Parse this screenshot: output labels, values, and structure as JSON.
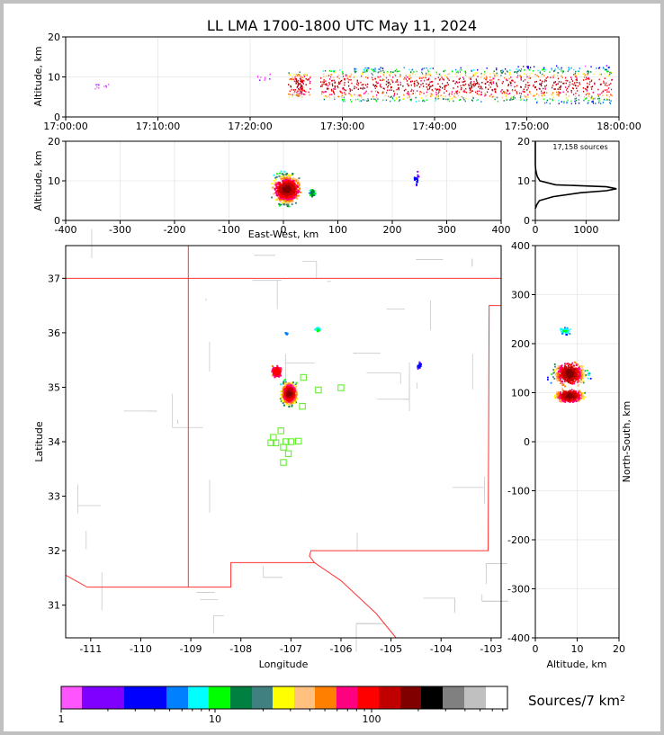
{
  "title": "LL LMA 1700-1800 UTC May 11, 2024",
  "chart_data": [
    {
      "id": "time-height",
      "type": "scatter",
      "xlabel": "",
      "ylabel": "Altitude, km",
      "xlim": [
        "17:00:00",
        "18:00:00"
      ],
      "ylim": [
        0,
        20
      ],
      "xticks": [
        "17:00:00",
        "17:10:00",
        "17:20:00",
        "17:30:00",
        "17:40:00",
        "17:50:00",
        "18:00:00"
      ],
      "yticks": [
        "0",
        "10",
        "20"
      ],
      "grid": true,
      "activity_minutes": [
        {
          "t": 3.9,
          "alt_low": 7.2,
          "alt_high": 8.4
        },
        {
          "t": 21.4,
          "alt_low": 9.0,
          "alt_high": 11.0
        },
        {
          "t": 24.9,
          "alt_low": 5.0,
          "alt_high": 11.5
        },
        {
          "t": 25.7,
          "alt_low": 5.5,
          "alt_high": 11.0
        },
        {
          "t": 28.4,
          "alt_low": 4.5,
          "alt_high": 12.0
        },
        {
          "t": 30.2,
          "alt_low": 4.0,
          "alt_high": 12.0
        },
        {
          "t": 32.0,
          "alt_low": 4.0,
          "alt_high": 12.5
        },
        {
          "t": 33.8,
          "alt_low": 4.0,
          "alt_high": 12.5
        },
        {
          "t": 35.5,
          "alt_low": 4.0,
          "alt_high": 12.0
        },
        {
          "t": 37.3,
          "alt_low": 4.0,
          "alt_high": 12.5
        },
        {
          "t": 39.0,
          "alt_low": 4.0,
          "alt_high": 12.5
        },
        {
          "t": 40.8,
          "alt_low": 4.0,
          "alt_high": 12.0
        },
        {
          "t": 42.6,
          "alt_low": 4.0,
          "alt_high": 12.5
        },
        {
          "t": 44.3,
          "alt_low": 4.0,
          "alt_high": 12.0
        },
        {
          "t": 46.1,
          "alt_low": 4.0,
          "alt_high": 12.5
        },
        {
          "t": 47.9,
          "alt_low": 4.0,
          "alt_high": 12.5
        },
        {
          "t": 49.6,
          "alt_low": 4.0,
          "alt_high": 13.0
        },
        {
          "t": 51.4,
          "alt_low": 3.5,
          "alt_high": 13.0
        },
        {
          "t": 53.2,
          "alt_low": 3.5,
          "alt_high": 13.0
        },
        {
          "t": 54.9,
          "alt_low": 3.5,
          "alt_high": 12.5
        },
        {
          "t": 56.7,
          "alt_low": 3.5,
          "alt_high": 13.0
        },
        {
          "t": 58.4,
          "alt_low": 3.5,
          "alt_high": 13.0
        }
      ]
    },
    {
      "id": "east-west-altitude",
      "type": "heatmap",
      "xlabel": "East-West, km",
      "ylabel": "Altitude, km",
      "xlim": [
        -400,
        400
      ],
      "ylim": [
        0,
        20
      ],
      "xticks": [
        "-400",
        "-300",
        "-200",
        "-100",
        "0",
        "100",
        "200",
        "300",
        "400"
      ],
      "yticks": [
        "0",
        "10",
        "20"
      ],
      "grid": true,
      "clusters": [
        {
          "x_min": -35,
          "x_max": 40,
          "alt_min": 2,
          "alt_max": 18,
          "core_x": 5,
          "core_alt": 8,
          "peak_density": 250
        },
        {
          "x_min": 42,
          "x_max": 60,
          "alt_min": 5,
          "alt_max": 9,
          "core_x": 52,
          "core_alt": 7,
          "peak_density": 20
        },
        {
          "x_min": 233,
          "x_max": 250,
          "alt_min": 8,
          "alt_max": 16,
          "core_x": 242,
          "core_alt": 11,
          "peak_density": 3
        }
      ]
    },
    {
      "id": "altitude-histogram",
      "type": "line",
      "xlim": [
        0,
        1650
      ],
      "ylim": [
        0,
        20
      ],
      "xticks": [
        "0",
        "1000"
      ],
      "yticks": [
        "0",
        "10",
        "20"
      ],
      "annotation": "17,158 sources",
      "altitude_km": [
        3,
        4,
        5,
        6,
        7,
        7.5,
        8,
        8.5,
        9,
        10,
        11,
        12,
        13,
        14,
        20
      ],
      "source_count": [
        0,
        30,
        80,
        350,
        900,
        1400,
        1600,
        1400,
        400,
        90,
        40,
        20,
        5,
        0,
        0
      ]
    },
    {
      "id": "plan-view",
      "type": "heatmap",
      "xlabel": "Longitude",
      "ylabel": "Latitude",
      "xlim": [
        -111.5,
        -102.8
      ],
      "ylim": [
        30.4,
        37.6
      ],
      "xticks": [
        "-111",
        "-110",
        "-109",
        "-108",
        "-107",
        "-106",
        "-105",
        "-104",
        "-103"
      ],
      "yticks": [
        "31",
        "32",
        "33",
        "34",
        "35",
        "36",
        "37"
      ],
      "clusters": [
        {
          "lon_min": -107.4,
          "lon_max": -106.9,
          "lat_min": 34.6,
          "lat_max": 35.3,
          "core_lon": -107.05,
          "core_lat": 34.9,
          "peak_density": 250
        },
        {
          "lon_min": -107.4,
          "lon_max": -107.1,
          "lat_min": 35.15,
          "lat_max": 35.45,
          "core_lon": -107.3,
          "core_lat": 35.3,
          "peak_density": 150
        },
        {
          "lon_min": -106.55,
          "lon_max": -106.4,
          "lat_min": 36.0,
          "lat_max": 36.12,
          "core_lon": -106.48,
          "core_lat": 36.07,
          "peak_density": 10
        },
        {
          "lon_min": -107.15,
          "lon_max": -107.05,
          "lat_min": 35.95,
          "lat_max": 36.05,
          "core_lon": -107.1,
          "core_lat": 36.0,
          "peak_density": 5
        },
        {
          "lon_min": -104.55,
          "lon_max": -104.4,
          "lat_min": 35.3,
          "lat_max": 35.5,
          "core_lon": -104.45,
          "core_lat": 35.4,
          "peak_density": 2
        }
      ],
      "stations": [
        {
          "lon": -106.75,
          "lat": 35.18
        },
        {
          "lon": -106.45,
          "lat": 34.95
        },
        {
          "lon": -106.0,
          "lat": 34.99
        },
        {
          "lon": -106.77,
          "lat": 34.65
        },
        {
          "lon": -107.2,
          "lat": 34.2
        },
        {
          "lon": -107.35,
          "lat": 34.08
        },
        {
          "lon": -107.4,
          "lat": 33.98
        },
        {
          "lon": -107.3,
          "lat": 33.98
        },
        {
          "lon": -107.1,
          "lat": 34.0
        },
        {
          "lon": -107.0,
          "lat": 34.0
        },
        {
          "lon": -106.85,
          "lat": 34.01
        },
        {
          "lon": -107.15,
          "lat": 33.9
        },
        {
          "lon": -107.05,
          "lat": 33.78
        },
        {
          "lon": -107.15,
          "lat": 33.62
        }
      ]
    },
    {
      "id": "altitude-north-south",
      "type": "heatmap",
      "xlabel": "Altitude, km",
      "ylabel": "North-South, km",
      "xlim": [
        0,
        20
      ],
      "ylim": [
        -400,
        400
      ],
      "xticks": [
        "0",
        "10",
        "20"
      ],
      "yticks": [
        "-400",
        "-300",
        "-200",
        "-100",
        "0",
        "100",
        "200",
        "300",
        "400"
      ],
      "grid": true,
      "clusters": [
        {
          "alt_min": 1,
          "alt_max": 20,
          "ns_min": 110,
          "ns_max": 180,
          "core_alt": 8,
          "core_ns": 140,
          "peak_density": 250
        },
        {
          "alt_min": 1,
          "alt_max": 15,
          "ns_min": 70,
          "ns_max": 110,
          "core_alt": 8,
          "core_ns": 95,
          "peak_density": 250
        },
        {
          "alt_min": 5,
          "alt_max": 10,
          "ns_min": 215,
          "ns_max": 240,
          "core_alt": 7,
          "core_ns": 228,
          "peak_density": 10
        }
      ]
    }
  ],
  "colorbar": {
    "label": "Sources/7 km²",
    "ticks": [
      "1",
      "10",
      "100"
    ],
    "colors": [
      "#ff55ff",
      "#8000ff",
      "#8000ff",
      "#0000ff",
      "#0000ff",
      "#0080ff",
      "#00ffff",
      "#00ff00",
      "#008040",
      "#408080",
      "#ffff00",
      "#ffc080",
      "#ff8000",
      "#ff0080",
      "#ff0000",
      "#c00000",
      "#800000",
      "#000000",
      "#808080",
      "#c0c0c0",
      "#ffffff"
    ]
  }
}
